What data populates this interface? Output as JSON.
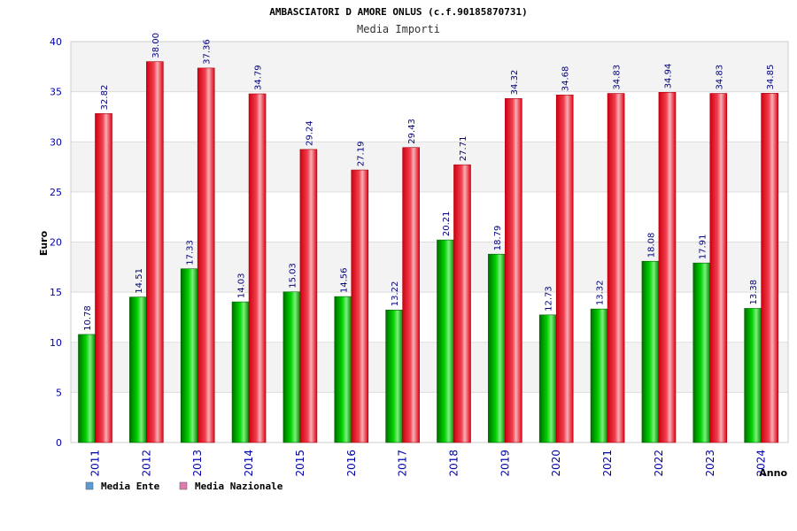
{
  "chart_data": {
    "type": "bar",
    "title": "AMBASCIATORI D AMORE ONLUS (c.f.90185870731)",
    "subtitle": "Media Importi",
    "xlabel": "Anno",
    "ylabel": "Euro",
    "ylim": [
      0,
      40
    ],
    "yticks": [
      0,
      5,
      10,
      15,
      20,
      25,
      30,
      35,
      40
    ],
    "grid": true,
    "legend_position": "bottom-left",
    "categories": [
      "2011",
      "2012",
      "2013",
      "2014",
      "2015",
      "2016",
      "2017",
      "2018",
      "2019",
      "2020",
      "2021",
      "2022",
      "2023",
      "2024"
    ],
    "series": [
      {
        "name": "Media Ente",
        "legend_color": "#5b9bd5",
        "bar_color": "#00b400",
        "values": [
          10.78,
          14.51,
          17.33,
          14.03,
          15.03,
          14.56,
          13.22,
          20.21,
          18.79,
          12.73,
          13.32,
          18.08,
          17.91,
          13.38
        ],
        "labels": [
          "10.78",
          "14.51",
          "17.33",
          "14.03",
          "15.03",
          "14.56",
          "13.22",
          "20.21",
          "18.79",
          "12.73",
          "13.32",
          "18.08",
          "17.91",
          "13.38"
        ]
      },
      {
        "name": "Media Nazionale",
        "legend_color": "#e07ab0",
        "bar_color": "#e8101c",
        "values": [
          32.82,
          38.0,
          37.36,
          34.79,
          29.24,
          27.19,
          29.43,
          27.71,
          34.32,
          34.68,
          34.83,
          34.94,
          34.83,
          34.85
        ],
        "labels": [
          "32.82",
          "38.00",
          "37.36",
          "34.79",
          "29.24",
          "27.19",
          "29.43",
          "27.71",
          "34.32",
          "34.68",
          "34.83",
          "34.94",
          "34.83",
          "34.85"
        ]
      }
    ]
  }
}
